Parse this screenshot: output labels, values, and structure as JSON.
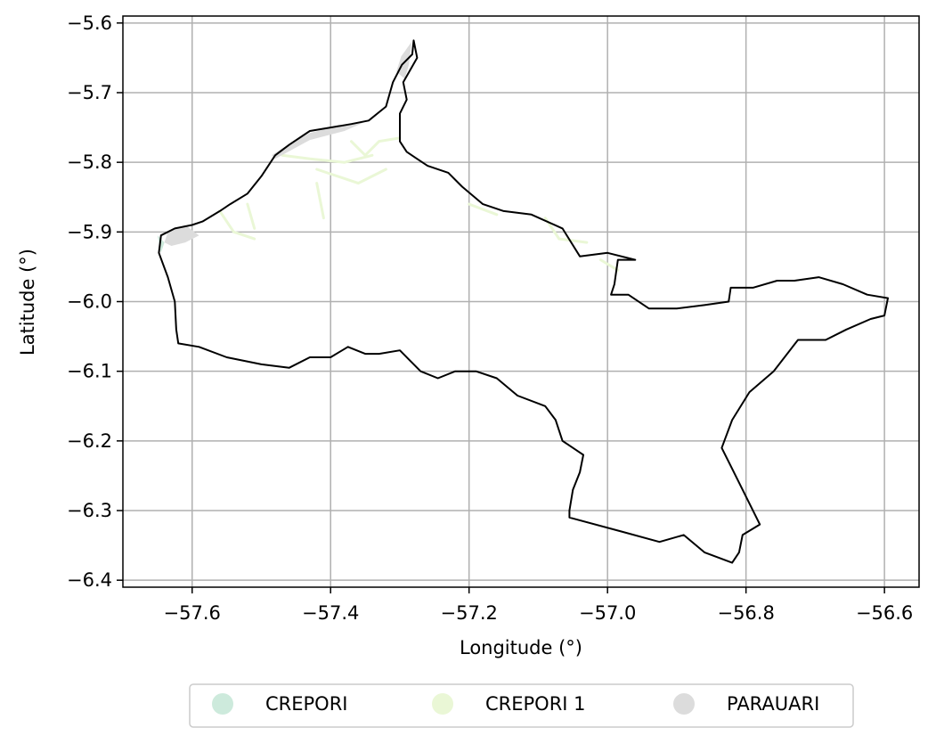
{
  "chart_data": {
    "type": "map",
    "xlabel": "Longitude (°)",
    "ylabel": "Latitude (°)",
    "xlim": [
      -57.7,
      -56.55
    ],
    "ylim": [
      -6.41,
      -5.59
    ],
    "grid": true,
    "x_ticks": [
      {
        "value": -57.6,
        "label": "−57.6"
      },
      {
        "value": -57.4,
        "label": "−57.4"
      },
      {
        "value": -57.2,
        "label": "−57.2"
      },
      {
        "value": -57.0,
        "label": "−57.0"
      },
      {
        "value": -56.8,
        "label": "−56.8"
      },
      {
        "value": -56.6,
        "label": "−56.6"
      }
    ],
    "y_ticks": [
      {
        "value": -5.6,
        "label": "−5.6"
      },
      {
        "value": -5.7,
        "label": "−5.7"
      },
      {
        "value": -5.8,
        "label": "−5.8"
      },
      {
        "value": -5.9,
        "label": "−5.9"
      },
      {
        "value": -6.0,
        "label": "−6.0"
      },
      {
        "value": -6.1,
        "label": "−6.1"
      },
      {
        "value": -6.2,
        "label": "−6.2"
      },
      {
        "value": -6.3,
        "label": "−6.3"
      },
      {
        "value": -6.4,
        "label": "−6.4"
      }
    ],
    "legend_position": "bottom-center",
    "legend": [
      {
        "name": "CREPORI",
        "color": "#cdeadc"
      },
      {
        "name": "CREPORI 1",
        "color": "#eaf7d6"
      },
      {
        "name": "PARAUARI",
        "color": "#dcdcdc"
      }
    ],
    "boundary": [
      [
        -57.28,
        -5.625
      ],
      [
        -57.282,
        -5.645
      ],
      [
        -57.297,
        -5.66
      ],
      [
        -57.31,
        -5.685
      ],
      [
        -57.32,
        -5.72
      ],
      [
        -57.345,
        -5.74
      ],
      [
        -57.37,
        -5.745
      ],
      [
        -57.4,
        -5.75
      ],
      [
        -57.43,
        -5.755
      ],
      [
        -57.46,
        -5.775
      ],
      [
        -57.48,
        -5.79
      ],
      [
        -57.5,
        -5.82
      ],
      [
        -57.52,
        -5.845
      ],
      [
        -57.545,
        -5.86
      ],
      [
        -57.56,
        -5.87
      ],
      [
        -57.585,
        -5.885
      ],
      [
        -57.6,
        -5.89
      ],
      [
        -57.625,
        -5.895
      ],
      [
        -57.645,
        -5.905
      ],
      [
        -57.648,
        -5.93
      ],
      [
        -57.635,
        -5.965
      ],
      [
        -57.625,
        -6.0
      ],
      [
        -57.623,
        -6.04
      ],
      [
        -57.62,
        -6.06
      ],
      [
        -57.59,
        -6.065
      ],
      [
        -57.55,
        -6.08
      ],
      [
        -57.5,
        -6.09
      ],
      [
        -57.46,
        -6.095
      ],
      [
        -57.43,
        -6.08
      ],
      [
        -57.4,
        -6.08
      ],
      [
        -57.375,
        -6.065
      ],
      [
        -57.35,
        -6.075
      ],
      [
        -57.33,
        -6.075
      ],
      [
        -57.3,
        -6.07
      ],
      [
        -57.285,
        -6.085
      ],
      [
        -57.27,
        -6.1
      ],
      [
        -57.245,
        -6.11
      ],
      [
        -57.22,
        -6.1
      ],
      [
        -57.19,
        -6.1
      ],
      [
        -57.16,
        -6.11
      ],
      [
        -57.13,
        -6.135
      ],
      [
        -57.09,
        -6.15
      ],
      [
        -57.075,
        -6.17
      ],
      [
        -57.065,
        -6.2
      ],
      [
        -57.035,
        -6.22
      ],
      [
        -57.04,
        -6.245
      ],
      [
        -57.05,
        -6.27
      ],
      [
        -57.055,
        -6.3
      ],
      [
        -57.055,
        -6.31
      ],
      [
        -56.98,
        -6.33
      ],
      [
        -56.925,
        -6.345
      ],
      [
        -56.89,
        -6.335
      ],
      [
        -56.86,
        -6.36
      ],
      [
        -56.82,
        -6.375
      ],
      [
        -56.81,
        -6.36
      ],
      [
        -56.805,
        -6.335
      ],
      [
        -56.78,
        -6.32
      ],
      [
        -56.805,
        -6.27
      ],
      [
        -56.82,
        -6.24
      ],
      [
        -56.835,
        -6.21
      ],
      [
        -56.82,
        -6.17
      ],
      [
        -56.795,
        -6.13
      ],
      [
        -56.76,
        -6.1
      ],
      [
        -56.725,
        -6.055
      ],
      [
        -56.685,
        -6.055
      ],
      [
        -56.655,
        -6.04
      ],
      [
        -56.62,
        -6.025
      ],
      [
        -56.6,
        -6.02
      ],
      [
        -56.595,
        -5.995
      ],
      [
        -56.625,
        -5.99
      ],
      [
        -56.66,
        -5.975
      ],
      [
        -56.695,
        -5.965
      ],
      [
        -56.73,
        -5.97
      ],
      [
        -56.755,
        -5.97
      ],
      [
        -56.79,
        -5.98
      ],
      [
        -56.822,
        -5.98
      ],
      [
        -56.825,
        -6.0
      ],
      [
        -56.86,
        -6.005
      ],
      [
        -56.9,
        -6.01
      ],
      [
        -56.94,
        -6.01
      ],
      [
        -56.97,
        -5.99
      ],
      [
        -56.995,
        -5.99
      ],
      [
        -56.99,
        -5.975
      ],
      [
        -56.985,
        -5.94
      ],
      [
        -56.96,
        -5.94
      ],
      [
        -57.0,
        -5.93
      ],
      [
        -57.04,
        -5.935
      ],
      [
        -57.065,
        -5.895
      ],
      [
        -57.11,
        -5.875
      ],
      [
        -57.15,
        -5.87
      ],
      [
        -57.18,
        -5.86
      ],
      [
        -57.21,
        -5.835
      ],
      [
        -57.23,
        -5.815
      ],
      [
        -57.26,
        -5.805
      ],
      [
        -57.275,
        -5.795
      ],
      [
        -57.29,
        -5.785
      ],
      [
        -57.3,
        -5.77
      ],
      [
        -57.3,
        -5.75
      ],
      [
        -57.3,
        -5.73
      ],
      [
        -57.29,
        -5.71
      ],
      [
        -57.295,
        -5.685
      ],
      [
        -57.275,
        -5.65
      ],
      [
        -57.28,
        -5.625
      ]
    ],
    "parauari_areas": [
      [
        [
          -57.283,
          -5.627
        ],
        [
          -57.298,
          -5.648
        ],
        [
          -57.305,
          -5.67
        ],
        [
          -57.293,
          -5.68
        ],
        [
          -57.287,
          -5.66
        ]
      ],
      [
        [
          -57.35,
          -5.742
        ],
        [
          -57.39,
          -5.748
        ],
        [
          -57.43,
          -5.758
        ],
        [
          -57.47,
          -5.78
        ],
        [
          -57.485,
          -5.79
        ],
        [
          -57.48,
          -5.795
        ],
        [
          -57.43,
          -5.768
        ],
        [
          -57.38,
          -5.755
        ]
      ],
      [
        [
          -57.61,
          -5.89
        ],
        [
          -57.635,
          -5.9
        ],
        [
          -57.64,
          -5.915
        ],
        [
          -57.63,
          -5.92
        ],
        [
          -57.61,
          -5.915
        ],
        [
          -57.59,
          -5.905
        ]
      ]
    ],
    "crepori_areas": [
      [
        [
          -57.65,
          -5.905
        ],
        [
          -57.64,
          -5.915
        ],
        [
          -57.645,
          -5.93
        ]
      ]
    ],
    "crepori1_streams": [
      [
        [
          -57.47,
          -5.79
        ],
        [
          -57.43,
          -5.795
        ],
        [
          -57.38,
          -5.8
        ],
        [
          -57.34,
          -5.79
        ]
      ],
      [
        [
          -57.42,
          -5.81
        ],
        [
          -57.36,
          -5.83
        ],
        [
          -57.32,
          -5.81
        ]
      ],
      [
        [
          -57.37,
          -5.77
        ],
        [
          -57.35,
          -5.79
        ],
        [
          -57.33,
          -5.77
        ],
        [
          -57.3,
          -5.765
        ]
      ],
      [
        [
          -57.56,
          -5.87
        ],
        [
          -57.54,
          -5.9
        ],
        [
          -57.51,
          -5.91
        ]
      ],
      [
        [
          -57.52,
          -5.86
        ],
        [
          -57.51,
          -5.895
        ]
      ],
      [
        [
          -57.2,
          -5.86
        ],
        [
          -57.16,
          -5.875
        ]
      ],
      [
        [
          -57.09,
          -5.88
        ],
        [
          -57.07,
          -5.91
        ],
        [
          -57.03,
          -5.915
        ]
      ],
      [
        [
          -57.01,
          -5.94
        ],
        [
          -56.985,
          -5.955
        ]
      ],
      [
        [
          -57.42,
          -5.83
        ],
        [
          -57.41,
          -5.88
        ]
      ]
    ]
  }
}
